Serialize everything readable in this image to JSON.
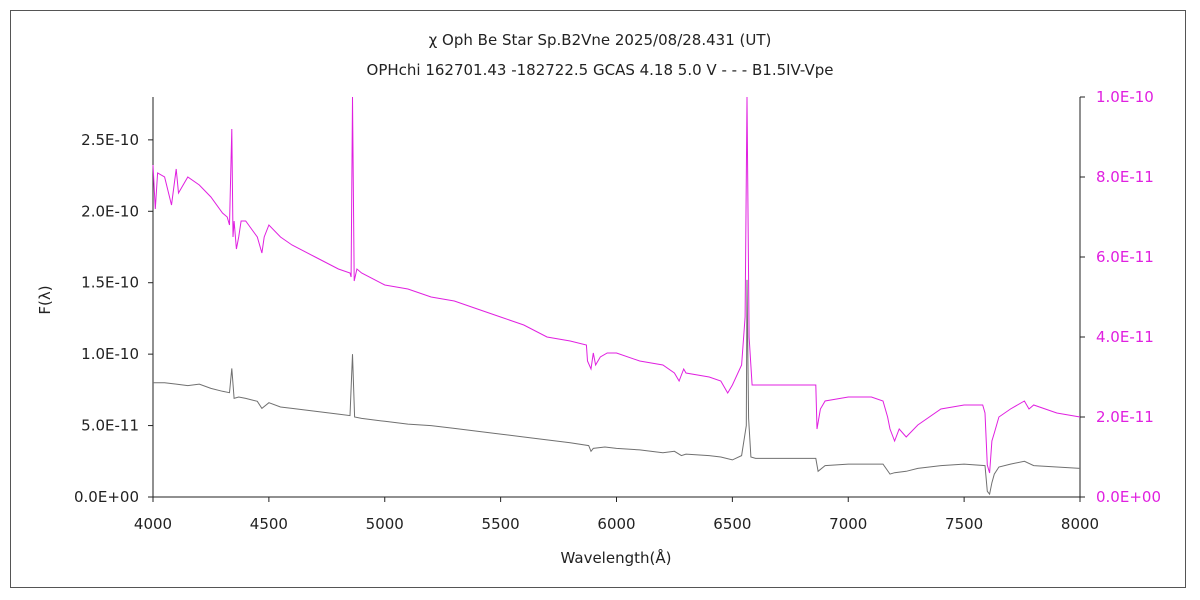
{
  "chart_data": {
    "type": "line",
    "title": "χ Oph   Be Star   Sp.B2Vne   2025/08/28.431 (UT)",
    "subtitle": "OPHchi 162701.43 -182722.5 GCAS 4.18 5.0 V - - - B1.5IV-Vpe",
    "xlabel": "Wavelength(Å)",
    "ylabel": "F(λ)",
    "xlim": [
      4000,
      8000
    ],
    "ylim_left": [
      0,
      2.8e-10
    ],
    "ylim_right": [
      0,
      1e-10
    ],
    "x_ticks": [
      "4000",
      "4500",
      "5000",
      "5500",
      "6000",
      "6500",
      "7000",
      "7500",
      "8000"
    ],
    "y_ticks_left": [
      "0.0E+00",
      "5.0E-11",
      "1.0E-10",
      "1.5E-10",
      "2.0E-10",
      "2.5E-10"
    ],
    "y_ticks_right": [
      "0.0E+00",
      "2.0E-11",
      "4.0E-11",
      "6.0E-11",
      "8.0E-11",
      "1.0E-10"
    ],
    "grid": false,
    "right_axis_color": "#e020e0",
    "series": [
      {
        "axis": "left",
        "color": "#707070",
        "x": [
          4000,
          4050,
          4100,
          4150,
          4200,
          4250,
          4300,
          4330,
          4340,
          4350,
          4370,
          4400,
          4450,
          4470,
          4500,
          4550,
          4600,
          4700,
          4800,
          4850,
          4861,
          4870,
          4900,
          5000,
          5100,
          5200,
          5300,
          5400,
          5500,
          5600,
          5700,
          5800,
          5880,
          5890,
          5900,
          5950,
          6000,
          6100,
          6200,
          6250,
          6280,
          6300,
          6400,
          6450,
          6500,
          6540,
          6560,
          6563,
          6570,
          6580,
          6600,
          6700,
          6860,
          6870,
          6900,
          7000,
          7100,
          7150,
          7180,
          7200,
          7250,
          7300,
          7400,
          7500,
          7590,
          7600,
          7610,
          7620,
          7630,
          7650,
          7700,
          7760,
          7800,
          7900,
          8000
        ],
        "y": [
          8e-11,
          8e-11,
          7.9e-11,
          7.8e-11,
          7.9e-11,
          7.6e-11,
          7.4e-11,
          7.3e-11,
          9e-11,
          6.9e-11,
          7e-11,
          6.9e-11,
          6.7e-11,
          6.2e-11,
          6.6e-11,
          6.3e-11,
          6.2e-11,
          6e-11,
          5.8e-11,
          5.7e-11,
          1e-10,
          5.6e-11,
          5.5e-11,
          5.3e-11,
          5.1e-11,
          5e-11,
          4.8e-11,
          4.6e-11,
          4.4e-11,
          4.2e-11,
          4e-11,
          3.8e-11,
          3.6e-11,
          3.2e-11,
          3.4e-11,
          3.5e-11,
          3.4e-11,
          3.3e-11,
          3.1e-11,
          3.2e-11,
          2.9e-11,
          3e-11,
          2.9e-11,
          2.8e-11,
          2.6e-11,
          2.9e-11,
          5e-11,
          1.52e-10,
          5.5e-11,
          2.8e-11,
          2.7e-11,
          2.7e-11,
          2.7e-11,
          1.8e-11,
          2.2e-11,
          2.3e-11,
          2.3e-11,
          2.3e-11,
          1.6e-11,
          1.7e-11,
          1.8e-11,
          2e-11,
          2.2e-11,
          2.3e-11,
          2.2e-11,
          4e-12,
          2e-12,
          1e-11,
          1.6e-11,
          2.1e-11,
          2.3e-11,
          2.5e-11,
          2.2e-11,
          2.1e-11,
          2e-11
        ]
      },
      {
        "axis": "right",
        "color": "#e020e0",
        "x": [
          4000,
          4010,
          4020,
          4050,
          4080,
          4100,
          4110,
          4150,
          4200,
          4250,
          4300,
          4320,
          4330,
          4340,
          4345,
          4350,
          4360,
          4370,
          4380,
          4400,
          4450,
          4470,
          4480,
          4500,
          4550,
          4600,
          4700,
          4800,
          4850,
          4855,
          4861,
          4868,
          4880,
          4900,
          5000,
          5100,
          5200,
          5300,
          5400,
          5500,
          5600,
          5700,
          5800,
          5870,
          5875,
          5890,
          5900,
          5910,
          5930,
          5960,
          6000,
          6100,
          6200,
          6250,
          6270,
          6290,
          6300,
          6400,
          6450,
          6480,
          6500,
          6540,
          6555,
          6563,
          6572,
          6585,
          6600,
          6700,
          6860,
          6865,
          6880,
          6900,
          7000,
          7100,
          7150,
          7170,
          7180,
          7200,
          7220,
          7250,
          7300,
          7400,
          7500,
          7550,
          7580,
          7590,
          7600,
          7610,
          7620,
          7630,
          7650,
          7700,
          7760,
          7780,
          7800,
          7900,
          8000
        ],
        "y": [
          8.3e-11,
          7.2e-11,
          8.1e-11,
          8e-11,
          7.3e-11,
          8.2e-11,
          7.6e-11,
          8e-11,
          7.8e-11,
          7.5e-11,
          7.1e-11,
          7e-11,
          6.8e-11,
          9.2e-11,
          6.5e-11,
          6.9e-11,
          6.2e-11,
          6.5e-11,
          6.9e-11,
          6.9e-11,
          6.5e-11,
          6.1e-11,
          6.5e-11,
          6.8e-11,
          6.5e-11,
          6.3e-11,
          6e-11,
          5.7e-11,
          5.6e-11,
          5.5e-11,
          1e-10,
          5.4e-11,
          5.7e-11,
          5.6e-11,
          5.3e-11,
          5.2e-11,
          5e-11,
          4.9e-11,
          4.7e-11,
          4.5e-11,
          4.3e-11,
          4e-11,
          3.9e-11,
          3.8e-11,
          3.4e-11,
          3.2e-11,
          3.6e-11,
          3.3e-11,
          3.5e-11,
          3.6e-11,
          3.6e-11,
          3.4e-11,
          3.3e-11,
          3.1e-11,
          2.9e-11,
          3.2e-11,
          3.1e-11,
          3e-11,
          2.9e-11,
          2.6e-11,
          2.8e-11,
          3.3e-11,
          4.5e-11,
          1e-10,
          4e-11,
          2.8e-11,
          2.8e-11,
          2.8e-11,
          2.8e-11,
          1.7e-11,
          2.2e-11,
          2.4e-11,
          2.5e-11,
          2.5e-11,
          2.4e-11,
          2e-11,
          1.7e-11,
          1.4e-11,
          1.7e-11,
          1.5e-11,
          1.8e-11,
          2.2e-11,
          2.3e-11,
          2.3e-11,
          2.3e-11,
          2.1e-11,
          8e-12,
          6e-12,
          1.4e-11,
          1.6e-11,
          2e-11,
          2.2e-11,
          2.4e-11,
          2.2e-11,
          2.3e-11,
          2.1e-11,
          2e-11
        ]
      }
    ]
  }
}
